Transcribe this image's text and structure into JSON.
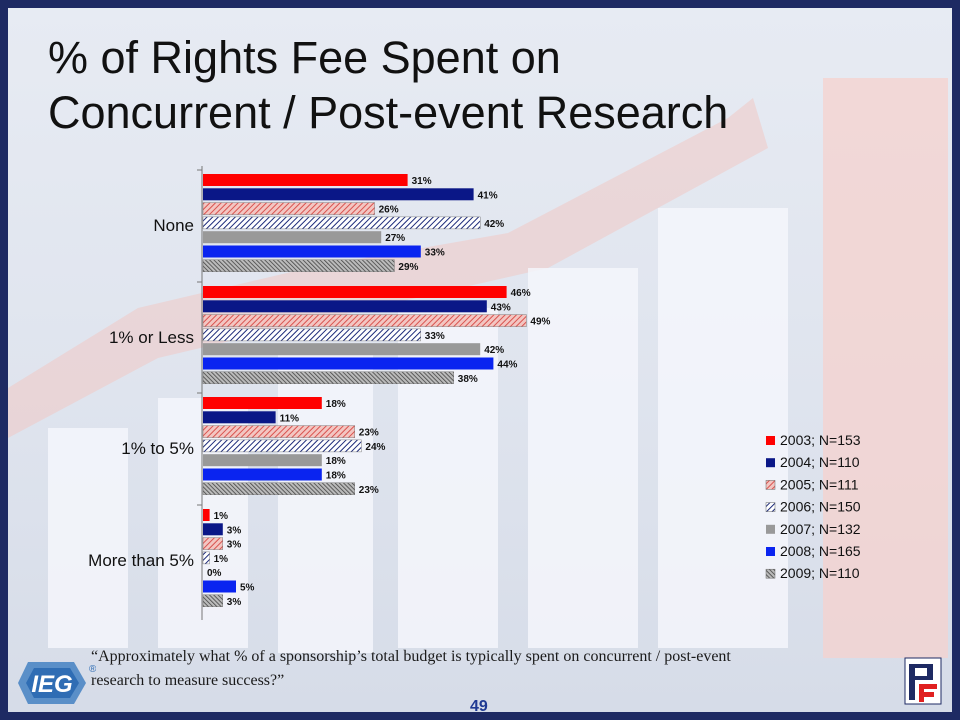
{
  "slide": {
    "title_line1": "% of Rights Fee Spent on",
    "title_line2": "Concurrent / Post-event Research",
    "question_line1": "“Approximately what % of a sponsorship’s total budget is typically spent on concurrent / post-event",
    "question_line2": "research to measure success?”",
    "page_number": "49",
    "logo_left_text": "IEG",
    "logo_left_mark": "®",
    "logo_right_text": "PF"
  },
  "chart_data": {
    "type": "bar",
    "orientation": "horizontal",
    "categories": [
      "None",
      "1% or Less",
      "1% to 5%",
      "More than 5%"
    ],
    "series": [
      {
        "name": "2003; N=153",
        "values": [
          31,
          46,
          18,
          1
        ],
        "color": "#ff0000",
        "pattern": "solid"
      },
      {
        "name": "2004; N=110",
        "values": [
          41,
          43,
          11,
          3
        ],
        "color": "#0a1787",
        "pattern": "solid"
      },
      {
        "name": "2005; N=111",
        "values": [
          26,
          49,
          23,
          3
        ],
        "color": "#d9534f",
        "pattern": "hatch-light"
      },
      {
        "name": "2006; N=150",
        "values": [
          42,
          33,
          24,
          1
        ],
        "color": "#1c2a7a",
        "pattern": "hatch"
      },
      {
        "name": "2007; N=132",
        "values": [
          27,
          42,
          18,
          0
        ],
        "color": "#999999",
        "pattern": "solid"
      },
      {
        "name": "2008; N=165",
        "values": [
          33,
          44,
          18,
          5
        ],
        "color": "#0a24f0",
        "pattern": "solid"
      },
      {
        "name": "2009; N=110",
        "values": [
          29,
          38,
          23,
          3
        ],
        "color": "#555555",
        "pattern": "hatch-dark"
      }
    ],
    "value_suffix": "%",
    "legend_position": "right",
    "grid": false
  }
}
